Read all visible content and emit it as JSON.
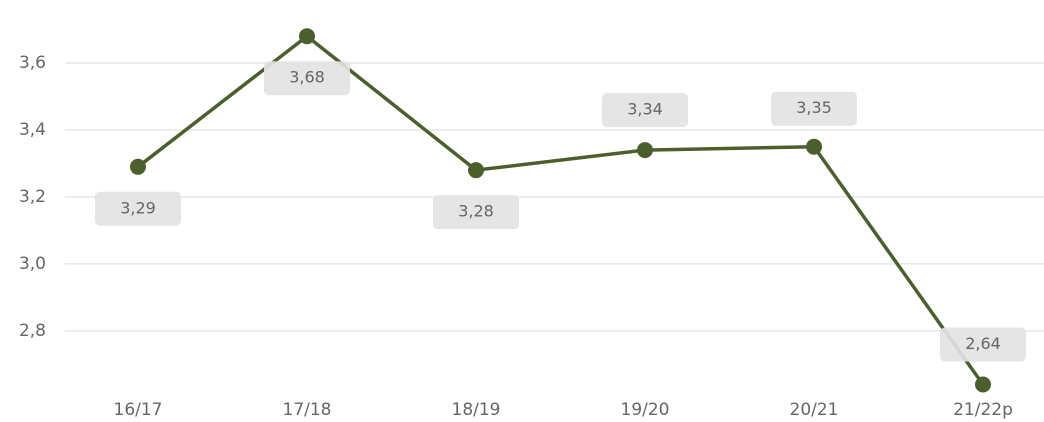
{
  "chart_data": {
    "type": "line",
    "categories": [
      "16/17",
      "17/18",
      "18/19",
      "19/20",
      "20/21",
      "21/22p"
    ],
    "series": [
      {
        "name": null,
        "color": "#4a5f2b",
        "values": [
          3.29,
          3.68,
          3.28,
          3.34,
          3.35,
          2.64
        ],
        "value_labels": [
          "3,29",
          "3,68",
          "3,28",
          "3,34",
          "3,35",
          "2,64"
        ]
      }
    ],
    "ylim": [
      2.64,
      3.7
    ],
    "yticks": [
      {
        "value": 2.8,
        "label": "2,8"
      },
      {
        "value": 3.0,
        "label": "3,0"
      },
      {
        "value": 3.2,
        "label": "3,2"
      },
      {
        "value": 3.4,
        "label": "3,4"
      },
      {
        "value": 3.6,
        "label": "3,6"
      }
    ],
    "grid": true
  }
}
